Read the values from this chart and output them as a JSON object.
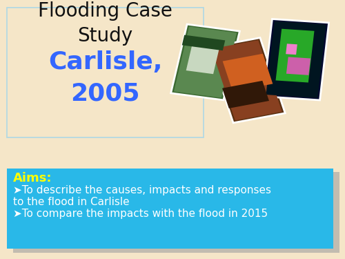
{
  "background_color": "#f5e6c8",
  "box_border_color": "#add8e6",
  "title_line1": "Flooding Case",
  "title_line2": "Study",
  "title_color": "#111111",
  "subtitle_line1": "Carlisle,",
  "subtitle_line2": "2005",
  "subtitle_color": "#3366ff",
  "aims_box_color": "#29b8e8",
  "aims_shadow_color": "#a0a0a0",
  "aims_label": "Aims:",
  "aims_label_color": "#ffff00",
  "bullet1a": "➤To describe the causes, impacts and responses",
  "bullet1b": "to the flood in Carlisle",
  "bullet2": "➤To compare the impacts with the flood in 2015",
  "bullet_color": "#ffffff",
  "title_fontsize": 20,
  "subtitle_fontsize": 26,
  "aims_label_fontsize": 13,
  "bullet_fontsize": 11
}
